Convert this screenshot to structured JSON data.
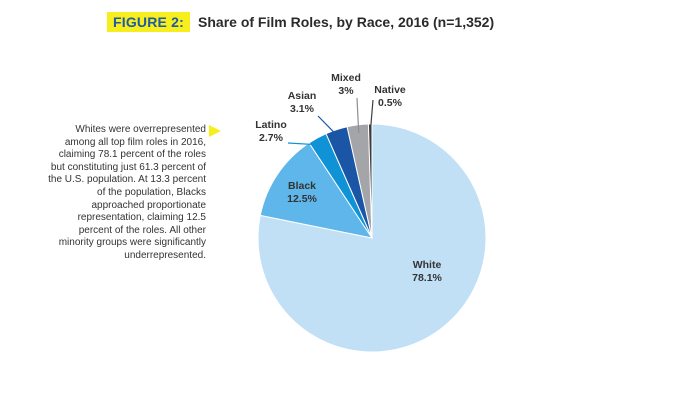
{
  "figure": {
    "label": "FIGURE 2:",
    "title": "Share of Film Roles, by Race, 2016 (n=1,352)"
  },
  "note": "Whites were overrepresented among all top film roles in 2016, claiming 78.1 percent of the roles but constituting just 61.3 percent of the U.S. population. At 13.3 percent of the population, Blacks approached proportionate representation, claiming 12.5 percent of the roles. All other minority groups were significantly underrepresented.",
  "colors": {
    "accent_yellow": "#f7ee1e",
    "accent_blue": "#1d5aa8"
  },
  "chart_data": {
    "type": "pie",
    "title": "Share of Film Roles, by Race, 2016 (n=1,352)",
    "slices": [
      {
        "name": "White",
        "value_label": "78.1%",
        "value": 78.1,
        "color": "#c1e0f5"
      },
      {
        "name": "Black",
        "value_label": "12.5%",
        "value": 12.5,
        "color": "#5eb6ea"
      },
      {
        "name": "Latino",
        "value_label": "2.7%",
        "value": 2.7,
        "color": "#0f93d6"
      },
      {
        "name": "Asian",
        "value_label": "3.1%",
        "value": 3.1,
        "color": "#1a55a6"
      },
      {
        "name": "Mixed",
        "value_label": "3%",
        "value": 3.0,
        "color": "#a3a5a8"
      },
      {
        "name": "Native",
        "value_label": "0.5%",
        "value": 0.5,
        "color": "#3d3d3d"
      }
    ]
  }
}
